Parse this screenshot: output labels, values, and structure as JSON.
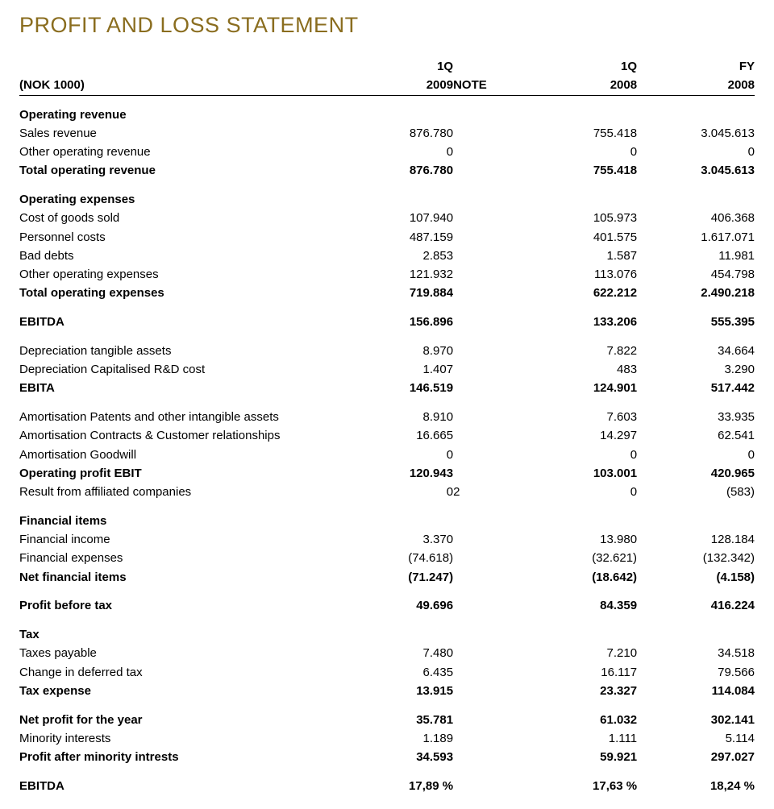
{
  "title": "PROFIT AND LOSS STATEMENT",
  "title_color": "#8a6d1f",
  "header": {
    "unit_label": "(NOK 1000)",
    "col1_top": "1Q",
    "col1_bot": "2009",
    "note_bot": "NOTE",
    "col2_top": "1Q",
    "col2_bot": "2008",
    "col3_top": "FY",
    "col3_bot": "2008"
  },
  "rows": [
    {
      "type": "section",
      "label": "Operating revenue"
    },
    {
      "label": "Sales revenue",
      "c1": "876.780",
      "c2": "755.418",
      "c3": "3.045.613"
    },
    {
      "label": "Other operating revenue",
      "c1": "0",
      "c2": "0",
      "c3": "0"
    },
    {
      "bold": true,
      "label": "Total operating revenue",
      "c1": "876.780",
      "c2": "755.418",
      "c3": "3.045.613"
    },
    {
      "type": "section",
      "label": "Operating expenses"
    },
    {
      "label": "Cost of goods sold",
      "c1": "107.940",
      "c2": "105.973",
      "c3": "406.368"
    },
    {
      "label": "Personnel costs",
      "c1": "487.159",
      "c2": "401.575",
      "c3": "1.617.071"
    },
    {
      "label": "Bad debts",
      "c1": "2.853",
      "c2": "1.587",
      "c3": "11.981"
    },
    {
      "label": "Other operating expenses",
      "c1": "121.932",
      "c2": "113.076",
      "c3": "454.798"
    },
    {
      "bold": true,
      "label": "Total operating expenses",
      "c1": "719.884",
      "c2": "622.212",
      "c3": "2.490.218"
    },
    {
      "gap": true,
      "bold": true,
      "label": "EBITDA",
      "c1": "156.896",
      "c2": "133.206",
      "c3": "555.395"
    },
    {
      "gap": true,
      "label": "Depreciation tangible assets",
      "c1": "8.970",
      "c2": "7.822",
      "c3": "34.664"
    },
    {
      "label": "Depreciation Capitalised R&D cost",
      "c1": "1.407",
      "c2": "483",
      "c3": "3.290"
    },
    {
      "bold": true,
      "label": "EBITA",
      "c1": "146.519",
      "c2": "124.901",
      "c3": "517.442"
    },
    {
      "gap": true,
      "label": "Amortisation Patents and other intangible assets",
      "c1": "8.910",
      "c2": "7.603",
      "c3": "33.935"
    },
    {
      "label": "Amortisation Contracts & Customer relationships",
      "c1": "16.665",
      "c2": "14.297",
      "c3": "62.541"
    },
    {
      "label": "Amortisation Goodwill",
      "c1": "0",
      "c2": "0",
      "c3": "0"
    },
    {
      "bold": true,
      "label": "Operating profit EBIT",
      "c1": "120.943",
      "c2": "103.001",
      "c3": "420.965"
    },
    {
      "label": "Result from affiliated companies",
      "c1": "0",
      "note": "2",
      "c2": "0",
      "c3": "(583)"
    },
    {
      "type": "section",
      "label": "Financial items"
    },
    {
      "label": "Financial income",
      "c1": "3.370",
      "c2": "13.980",
      "c3": "128.184"
    },
    {
      "label": "Financial expenses",
      "c1": "(74.618)",
      "c2": "(32.621)",
      "c3": "(132.342)"
    },
    {
      "bold": true,
      "label": "Net financial items",
      "c1": "(71.247)",
      "c2": "(18.642)",
      "c3": "(4.158)"
    },
    {
      "gap": true,
      "bold": true,
      "label": "Profit before tax",
      "c1": "49.696",
      "c2": "84.359",
      "c3": "416.224"
    },
    {
      "type": "section",
      "label": "Tax"
    },
    {
      "label": "Taxes payable",
      "c1": "7.480",
      "c2": "7.210",
      "c3": "34.518"
    },
    {
      "label": "Change in deferred tax",
      "c1": "6.435",
      "c2": "16.117",
      "c3": "79.566"
    },
    {
      "bold": true,
      "label": "Tax expense",
      "c1": "13.915",
      "c2": "23.327",
      "c3": "114.084"
    },
    {
      "gap": true,
      "bold": true,
      "label": "Net profit for the year",
      "c1": "35.781",
      "c2": "61.032",
      "c3": "302.141"
    },
    {
      "label": "Minority interests",
      "c1": "1.189",
      "c2": "1.111",
      "c3": "5.114"
    },
    {
      "bold": true,
      "label": "Profit after minority intrests",
      "c1": "34.593",
      "c2": "59.921",
      "c3": "297.027"
    },
    {
      "gap": true,
      "bold": true,
      "label": "EBITDA",
      "c1": "17,89 %",
      "c2": "17,63 %",
      "c3": "18,24 %"
    }
  ]
}
